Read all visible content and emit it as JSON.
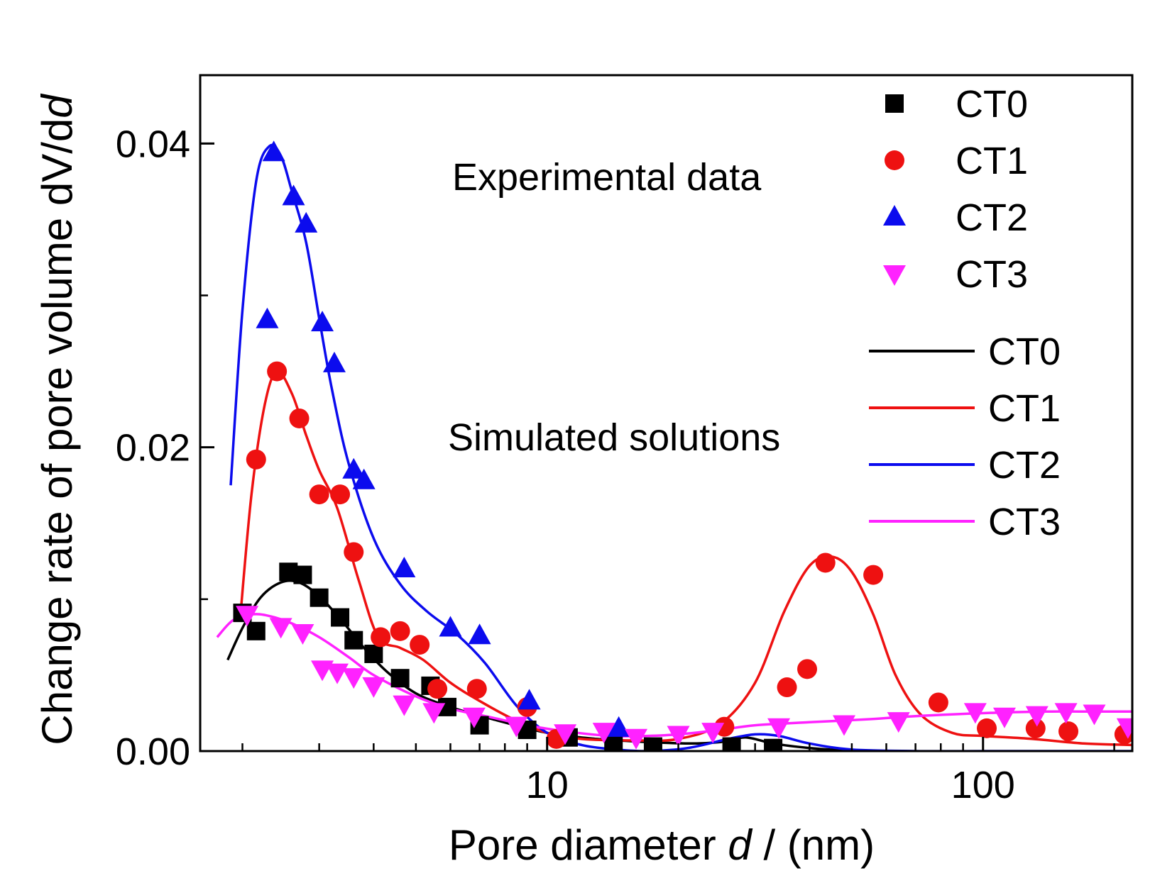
{
  "chart_data": {
    "type": "scatter",
    "xscale": "log",
    "xlim": [
      1.6,
      220
    ],
    "ylim": [
      0,
      0.0445
    ],
    "xlabel_prefix": "Pore diameter ",
    "xlabel_var": "d",
    "xlabel_suffix": " / (nm)",
    "ylabel_prefix": "Change rate of pore volume  dV/d",
    "ylabel_var": "d",
    "x_ticks": [
      {
        "value": 10,
        "label": "10"
      },
      {
        "value": 100,
        "label": "100"
      }
    ],
    "x_minor_ticks": [
      2,
      3,
      4,
      5,
      6,
      7,
      8,
      9,
      20,
      30,
      40,
      50,
      60,
      70,
      80,
      90,
      200
    ],
    "y_ticks": [
      {
        "value": 0,
        "label": "0.00"
      },
      {
        "value": 0.02,
        "label": "0.02"
      },
      {
        "value": 0.04,
        "label": "0.04"
      }
    ],
    "y_minor_ticks": [
      0.01,
      0.03
    ],
    "annotations": {
      "experimental": "Experimental data",
      "simulated": "Simulated solutions"
    },
    "experimental_series": [
      {
        "name": "CT0",
        "marker": "square",
        "color": "#000000",
        "x": [
          2.0,
          2.15,
          2.55,
          2.75,
          3.0,
          3.35,
          3.6,
          4.0,
          4.6,
          5.4,
          5.9,
          7.0,
          9.0,
          11.2,
          14.2,
          17.5,
          26.5,
          33.0
        ],
        "y": [
          0.0091,
          0.0079,
          0.0118,
          0.0116,
          0.0101,
          0.0088,
          0.0073,
          0.0064,
          0.0048,
          0.0043,
          0.0029,
          0.0017,
          0.0014,
          0.0009,
          0.0004,
          0.0003,
          0.0003,
          0.0002
        ]
      },
      {
        "name": "CT1",
        "marker": "circle",
        "color": "#ee1111",
        "x": [
          2.15,
          2.4,
          2.7,
          3.0,
          3.35,
          3.6,
          4.15,
          4.6,
          5.1,
          5.6,
          6.9,
          9.0,
          10.5,
          25.5,
          35.5,
          39.5,
          43.5,
          56.0,
          79.0,
          102.0,
          132.0,
          157.0,
          211.0
        ],
        "y": [
          0.0192,
          0.025,
          0.0219,
          0.0169,
          0.0169,
          0.0131,
          0.0075,
          0.0079,
          0.007,
          0.0041,
          0.0041,
          0.0029,
          0.0008,
          0.0016,
          0.0042,
          0.0054,
          0.0124,
          0.0116,
          0.0032,
          0.0015,
          0.0015,
          0.0013,
          0.0011
        ],
        "hide_last_n": 1
      },
      {
        "name": "CT2",
        "marker": "triangle-up",
        "color": "#0b0bee",
        "x": [
          2.28,
          2.36,
          2.62,
          2.8,
          3.05,
          3.25,
          3.6,
          3.8,
          4.7,
          6.0,
          7.0,
          9.1,
          14.6
        ],
        "y": [
          0.0284,
          0.0394,
          0.0365,
          0.0347,
          0.0282,
          0.0255,
          0.0185,
          0.0178,
          0.012,
          0.0081,
          0.0076,
          0.0033,
          0.0015
        ]
      },
      {
        "name": "CT3",
        "marker": "triangle-down",
        "color": "#ff22ff",
        "x": [
          2.05,
          2.45,
          2.75,
          3.05,
          3.3,
          3.6,
          4.0,
          4.7,
          5.5,
          6.8,
          8.5,
          11.0,
          13.5,
          16.0,
          20.0,
          24.0,
          34.0,
          48.0,
          64.0,
          96.0,
          112.0,
          133.0,
          155.0,
          180.0,
          215.0
        ],
        "y": [
          0.009,
          0.0082,
          0.0078,
          0.0054,
          0.0052,
          0.0049,
          0.0043,
          0.0031,
          0.0026,
          0.0023,
          0.0017,
          0.0012,
          0.0013,
          0.0009,
          0.0011,
          0.0013,
          0.0016,
          0.0018,
          0.002,
          0.0026,
          0.0023,
          0.0024,
          0.0026,
          0.0025,
          0.0016
        ],
        "hide_last_n": 1
      }
    ],
    "simulated_series": [
      {
        "name": "CT0",
        "color": "#000000",
        "x": [
          1.85,
          2.0,
          2.2,
          2.45,
          2.7,
          3.0,
          3.4,
          3.8,
          4.3,
          5.0,
          6.0,
          7.5,
          10.0,
          13.0,
          17.0,
          21.0,
          25.0,
          28.5,
          33.0,
          40.0,
          50.0
        ],
        "y": [
          0.006,
          0.0081,
          0.0101,
          0.0111,
          0.0111,
          0.0102,
          0.0085,
          0.0068,
          0.0052,
          0.0038,
          0.0029,
          0.0021,
          0.0012,
          0.0008,
          0.0006,
          0.0005,
          0.0006,
          0.0009,
          0.0005,
          0.0002,
          0.0
        ]
      },
      {
        "name": "CT1",
        "color": "#ee1111",
        "x": [
          1.98,
          2.1,
          2.25,
          2.4,
          2.6,
          2.8,
          3.0,
          3.3,
          3.7,
          4.1,
          4.6,
          5.2,
          6.0,
          7.0,
          8.5,
          10.0,
          12.0,
          16.0,
          20.0,
          25.0,
          30.0,
          35.0,
          40.0,
          45.0,
          50.0,
          56.0,
          63.0,
          72.0,
          85.0,
          100.0,
          130.0,
          170.0,
          220.0
        ],
        "y": [
          0.009,
          0.017,
          0.0228,
          0.025,
          0.0235,
          0.0208,
          0.0185,
          0.016,
          0.0112,
          0.0075,
          0.0068,
          0.006,
          0.0045,
          0.0033,
          0.002,
          0.0012,
          0.0008,
          0.0007,
          0.0008,
          0.0018,
          0.0045,
          0.0092,
          0.0122,
          0.0128,
          0.0118,
          0.009,
          0.005,
          0.0024,
          0.0012,
          0.001,
          0.0008,
          0.0005,
          0.0004
        ]
      },
      {
        "name": "CT2",
        "color": "#0b0bee",
        "x": [
          1.88,
          2.0,
          2.15,
          2.3,
          2.45,
          2.6,
          2.8,
          3.0,
          3.2,
          3.5,
          4.0,
          4.6,
          5.3,
          6.2,
          7.2,
          8.5,
          10.0,
          12.0,
          14.5,
          17.0,
          21.0,
          26.0,
          30.0,
          34.0,
          40.0,
          50.0,
          70.0,
          100.0,
          150.0,
          220.0
        ],
        "y": [
          0.0175,
          0.029,
          0.0375,
          0.0398,
          0.0392,
          0.0368,
          0.0335,
          0.0285,
          0.024,
          0.019,
          0.014,
          0.011,
          0.0092,
          0.0077,
          0.0058,
          0.003,
          0.0012,
          0.0004,
          0.0001,
          0.0,
          0.0002,
          0.0008,
          0.0011,
          0.001,
          0.0005,
          0.0001,
          0.0,
          0.0,
          0.0,
          0.0
        ]
      },
      {
        "name": "CT3",
        "color": "#ff22ff",
        "x": [
          1.75,
          1.9,
          2.1,
          2.3,
          2.6,
          3.0,
          3.5,
          4.0,
          5.0,
          6.0,
          7.5,
          9.0,
          11.0,
          14.0,
          17.0,
          20.0,
          25.0,
          30.0,
          40.0,
          55.0,
          70.0,
          100.0,
          140.0,
          180.0,
          220.0
        ],
        "y": [
          0.0075,
          0.0086,
          0.009,
          0.0089,
          0.0084,
          0.0075,
          0.0062,
          0.005,
          0.0036,
          0.0028,
          0.0022,
          0.0017,
          0.0013,
          0.001,
          0.001,
          0.0011,
          0.0014,
          0.0017,
          0.0019,
          0.0021,
          0.0023,
          0.0025,
          0.0026,
          0.0026,
          0.0026
        ]
      }
    ]
  }
}
